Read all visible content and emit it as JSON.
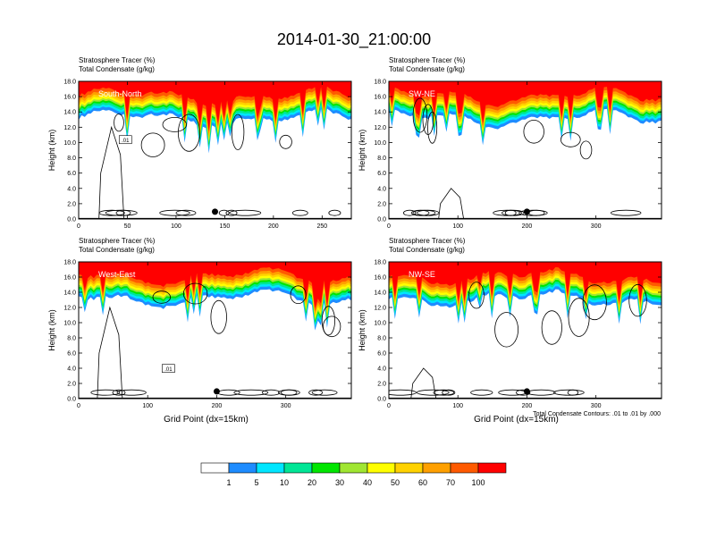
{
  "page_title": "2014-01-30_21:00:00",
  "footnote": "Total Condensate Contours: .01 to .01 by .000",
  "colorbar": {
    "levels": [
      "1",
      "5",
      "10",
      "20",
      "30",
      "40",
      "50",
      "60",
      "70",
      "100"
    ],
    "colors": [
      "#ffffff",
      "#1e8cff",
      "#00e6ff",
      "#00e696",
      "#00e600",
      "#a0e632",
      "#ffff00",
      "#ffd200",
      "#ffa000",
      "#ff5a00",
      "#ff0000"
    ]
  },
  "chart_data": [
    {
      "type": "contour",
      "title_line1": "Stratosphere Tracer   (%)",
      "title_line2": "Total Condensate   (g/kg)",
      "label": "South-North",
      "ylabel": "Height (km)",
      "xlabel": "",
      "xlim": [
        0,
        280
      ],
      "ylim": [
        0,
        18
      ],
      "xticks": [
        "0",
        "50",
        "100",
        "150",
        "200",
        "250"
      ],
      "yticks": [
        "0.0",
        "2.0",
        "4.0",
        "6.0",
        "8.0",
        "10.0",
        "12.0",
        "14.0",
        "16.0",
        "18.0"
      ],
      "contour_label": ".01",
      "marker_x": 140
    },
    {
      "type": "contour",
      "title_line1": "Stratosphere Tracer   (%)",
      "title_line2": "Total Condensate   (g/kg)",
      "label": "SW-NE",
      "ylabel": "Height (km)",
      "xlabel": "",
      "xlim": [
        0,
        395
      ],
      "ylim": [
        0,
        18
      ],
      "xticks": [
        "0",
        "100",
        "200",
        "300"
      ],
      "yticks": [
        "0.0",
        "2.0",
        "4.0",
        "6.0",
        "8.0",
        "10.0",
        "12.0",
        "14.0",
        "16.0",
        "18.0"
      ],
      "contour_label": "",
      "marker_x": 200
    },
    {
      "type": "contour",
      "title_line1": "Stratosphere Tracer   (%)",
      "title_line2": "Total Condensate   (g/kg)",
      "label": "West-East",
      "ylabel": "Height (km)",
      "xlabel": "Grid Point (dx=15km)",
      "xlim": [
        0,
        395
      ],
      "ylim": [
        0,
        18
      ],
      "xticks": [
        "0",
        "100",
        "200",
        "300"
      ],
      "yticks": [
        "0.0",
        "2.0",
        "4.0",
        "6.0",
        "8.0",
        "10.0",
        "12.0",
        "14.0",
        "16.0",
        "18.0"
      ],
      "contour_label": ".01",
      "marker_x": 200
    },
    {
      "type": "contour",
      "title_line1": "Stratosphere Tracer   (%)",
      "title_line2": "Total Condensate   (g/kg)",
      "label": "NW-SE",
      "ylabel": "Height (km)",
      "xlabel": "Grid Point (dx=15km)",
      "xlim": [
        0,
        395
      ],
      "ylim": [
        0,
        18
      ],
      "xticks": [
        "0",
        "100",
        "200",
        "300"
      ],
      "yticks": [
        "0.0",
        "2.0",
        "4.0",
        "6.0",
        "8.0",
        "10.0",
        "12.0",
        "14.0",
        "16.0",
        "18.0"
      ],
      "contour_label": "",
      "marker_x": 200
    }
  ]
}
